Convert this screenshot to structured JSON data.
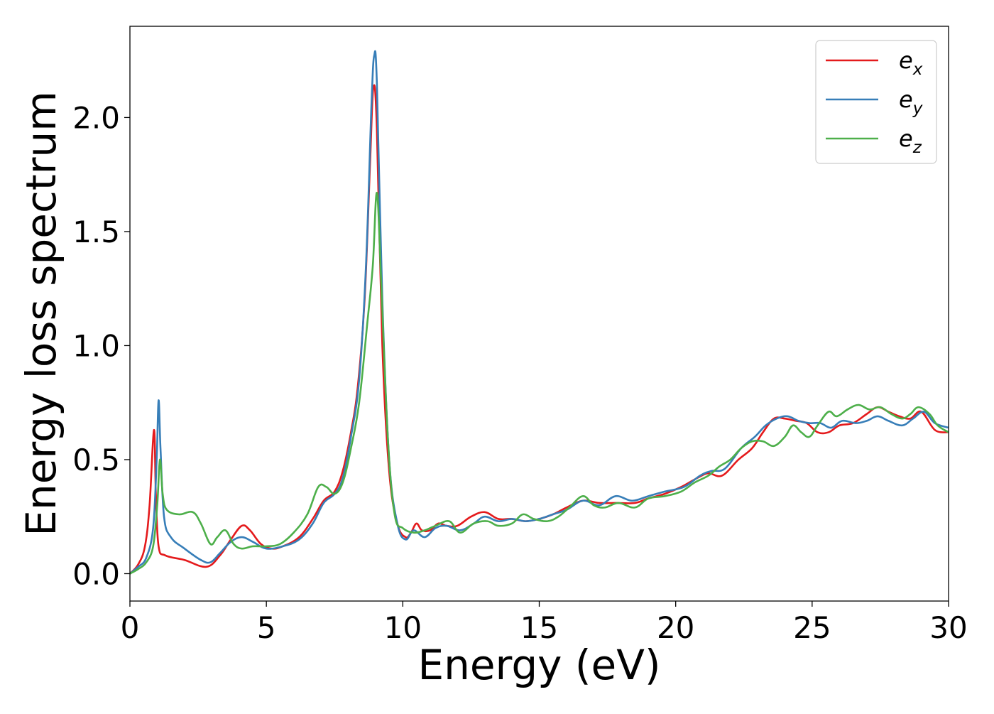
{
  "chart_data": {
    "type": "line",
    "title": "",
    "xlabel": "Energy (eV)",
    "ylabel": "Energy loss spectrum",
    "xlim": [
      0,
      30
    ],
    "ylim": [
      -0.12,
      2.4
    ],
    "xticks": [
      0,
      5,
      10,
      15,
      20,
      25,
      30
    ],
    "xtick_labels": [
      "0",
      "5",
      "10",
      "15",
      "20",
      "25",
      "30"
    ],
    "yticks": [
      0.0,
      0.5,
      1.0,
      1.5,
      2.0
    ],
    "ytick_labels": [
      "0.0",
      "0.5",
      "1.0",
      "1.5",
      "2.0"
    ],
    "grid": false,
    "legend_position": "top-right",
    "series": [
      {
        "name": "e_x",
        "label_base": "e",
        "label_sub": "x",
        "color": "#e41a1c",
        "points": [
          [
            0,
            0
          ],
          [
            0.3,
            0.04
          ],
          [
            0.55,
            0.12
          ],
          [
            0.72,
            0.3
          ],
          [
            0.88,
            0.63
          ],
          [
            0.95,
            0.35
          ],
          [
            1.05,
            0.12
          ],
          [
            1.3,
            0.08
          ],
          [
            2.0,
            0.06
          ],
          [
            2.8,
            0.03
          ],
          [
            3.3,
            0.08
          ],
          [
            3.7,
            0.15
          ],
          [
            4.1,
            0.21
          ],
          [
            4.4,
            0.19
          ],
          [
            4.8,
            0.13
          ],
          [
            5.2,
            0.11
          ],
          [
            5.6,
            0.12
          ],
          [
            6.2,
            0.16
          ],
          [
            6.7,
            0.24
          ],
          [
            7.1,
            0.32
          ],
          [
            7.5,
            0.36
          ],
          [
            7.8,
            0.45
          ],
          [
            8.1,
            0.62
          ],
          [
            8.35,
            0.82
          ],
          [
            8.6,
            1.2
          ],
          [
            8.8,
            1.8
          ],
          [
            8.92,
            2.13
          ],
          [
            9.05,
            1.95
          ],
          [
            9.25,
            1.0
          ],
          [
            9.5,
            0.45
          ],
          [
            9.8,
            0.22
          ],
          [
            10.1,
            0.16
          ],
          [
            10.3,
            0.18
          ],
          [
            10.5,
            0.22
          ],
          [
            10.7,
            0.19
          ],
          [
            11.0,
            0.19
          ],
          [
            11.3,
            0.22
          ],
          [
            11.6,
            0.21
          ],
          [
            12.0,
            0.21
          ],
          [
            12.5,
            0.25
          ],
          [
            13.0,
            0.27
          ],
          [
            13.5,
            0.24
          ],
          [
            14.0,
            0.24
          ],
          [
            14.5,
            0.23
          ],
          [
            15.0,
            0.24
          ],
          [
            15.5,
            0.26
          ],
          [
            16.0,
            0.29
          ],
          [
            16.6,
            0.32
          ],
          [
            17.2,
            0.31
          ],
          [
            17.8,
            0.31
          ],
          [
            18.5,
            0.31
          ],
          [
            19.0,
            0.33
          ],
          [
            19.6,
            0.35
          ],
          [
            20.2,
            0.38
          ],
          [
            20.8,
            0.42
          ],
          [
            21.2,
            0.44
          ],
          [
            21.7,
            0.43
          ],
          [
            22.3,
            0.5
          ],
          [
            22.8,
            0.55
          ],
          [
            23.2,
            0.62
          ],
          [
            23.6,
            0.68
          ],
          [
            24.0,
            0.68
          ],
          [
            24.4,
            0.67
          ],
          [
            24.8,
            0.66
          ],
          [
            25.2,
            0.62
          ],
          [
            25.6,
            0.62
          ],
          [
            26.0,
            0.65
          ],
          [
            26.5,
            0.66
          ],
          [
            27.0,
            0.7
          ],
          [
            27.4,
            0.73
          ],
          [
            27.8,
            0.71
          ],
          [
            28.2,
            0.69
          ],
          [
            28.6,
            0.68
          ],
          [
            29.0,
            0.71
          ],
          [
            29.5,
            0.63
          ],
          [
            30.0,
            0.62
          ]
        ]
      },
      {
        "name": "e_y",
        "label_base": "e",
        "label_sub": "y",
        "color": "#377eb8",
        "points": [
          [
            0,
            0
          ],
          [
            0.3,
            0.03
          ],
          [
            0.6,
            0.07
          ],
          [
            0.85,
            0.2
          ],
          [
            0.98,
            0.5
          ],
          [
            1.05,
            0.76
          ],
          [
            1.12,
            0.55
          ],
          [
            1.25,
            0.25
          ],
          [
            1.5,
            0.16
          ],
          [
            2.0,
            0.11
          ],
          [
            2.6,
            0.06
          ],
          [
            2.95,
            0.05
          ],
          [
            3.3,
            0.09
          ],
          [
            3.7,
            0.14
          ],
          [
            4.1,
            0.16
          ],
          [
            4.5,
            0.14
          ],
          [
            5.0,
            0.11
          ],
          [
            5.6,
            0.12
          ],
          [
            6.2,
            0.15
          ],
          [
            6.7,
            0.22
          ],
          [
            7.1,
            0.31
          ],
          [
            7.5,
            0.35
          ],
          [
            7.8,
            0.42
          ],
          [
            8.1,
            0.6
          ],
          [
            8.4,
            0.85
          ],
          [
            8.65,
            1.35
          ],
          [
            8.85,
            2.05
          ],
          [
            8.95,
            2.27
          ],
          [
            9.05,
            2.15
          ],
          [
            9.25,
            1.2
          ],
          [
            9.5,
            0.5
          ],
          [
            9.8,
            0.22
          ],
          [
            10.1,
            0.15
          ],
          [
            10.4,
            0.19
          ],
          [
            10.8,
            0.16
          ],
          [
            11.2,
            0.2
          ],
          [
            11.6,
            0.21
          ],
          [
            12.1,
            0.19
          ],
          [
            12.6,
            0.22
          ],
          [
            13.0,
            0.25
          ],
          [
            13.5,
            0.23
          ],
          [
            14.0,
            0.24
          ],
          [
            14.5,
            0.23
          ],
          [
            15.0,
            0.24
          ],
          [
            15.5,
            0.26
          ],
          [
            16.0,
            0.28
          ],
          [
            16.6,
            0.32
          ],
          [
            17.2,
            0.3
          ],
          [
            17.8,
            0.34
          ],
          [
            18.4,
            0.32
          ],
          [
            19.0,
            0.34
          ],
          [
            19.6,
            0.36
          ],
          [
            20.3,
            0.38
          ],
          [
            20.9,
            0.43
          ],
          [
            21.3,
            0.45
          ],
          [
            21.8,
            0.46
          ],
          [
            22.4,
            0.55
          ],
          [
            22.9,
            0.6
          ],
          [
            23.3,
            0.65
          ],
          [
            23.7,
            0.68
          ],
          [
            24.1,
            0.69
          ],
          [
            24.5,
            0.67
          ],
          [
            24.9,
            0.66
          ],
          [
            25.3,
            0.66
          ],
          [
            25.7,
            0.64
          ],
          [
            26.1,
            0.67
          ],
          [
            26.6,
            0.66
          ],
          [
            27.0,
            0.67
          ],
          [
            27.4,
            0.69
          ],
          [
            27.8,
            0.67
          ],
          [
            28.3,
            0.65
          ],
          [
            28.7,
            0.68
          ],
          [
            29.1,
            0.71
          ],
          [
            29.5,
            0.66
          ],
          [
            30.0,
            0.64
          ]
        ]
      },
      {
        "name": "e_z",
        "label_base": "e",
        "label_sub": "z",
        "color": "#4daf4a",
        "points": [
          [
            0,
            0
          ],
          [
            0.3,
            0.02
          ],
          [
            0.6,
            0.05
          ],
          [
            0.85,
            0.12
          ],
          [
            1.0,
            0.3
          ],
          [
            1.1,
            0.5
          ],
          [
            1.2,
            0.35
          ],
          [
            1.35,
            0.28
          ],
          [
            1.8,
            0.26
          ],
          [
            2.3,
            0.27
          ],
          [
            2.6,
            0.22
          ],
          [
            2.95,
            0.13
          ],
          [
            3.2,
            0.16
          ],
          [
            3.5,
            0.19
          ],
          [
            3.8,
            0.13
          ],
          [
            4.1,
            0.11
          ],
          [
            4.5,
            0.12
          ],
          [
            5.0,
            0.12
          ],
          [
            5.5,
            0.13
          ],
          [
            6.0,
            0.18
          ],
          [
            6.5,
            0.26
          ],
          [
            6.9,
            0.38
          ],
          [
            7.2,
            0.38
          ],
          [
            7.5,
            0.35
          ],
          [
            7.8,
            0.4
          ],
          [
            8.1,
            0.55
          ],
          [
            8.4,
            0.75
          ],
          [
            8.7,
            1.1
          ],
          [
            8.9,
            1.35
          ],
          [
            9.05,
            1.67
          ],
          [
            9.2,
            1.3
          ],
          [
            9.45,
            0.6
          ],
          [
            9.7,
            0.26
          ],
          [
            10.0,
            0.2
          ],
          [
            10.4,
            0.18
          ],
          [
            10.8,
            0.19
          ],
          [
            11.2,
            0.21
          ],
          [
            11.7,
            0.23
          ],
          [
            12.1,
            0.18
          ],
          [
            12.6,
            0.22
          ],
          [
            13.1,
            0.23
          ],
          [
            13.5,
            0.21
          ],
          [
            14.0,
            0.22
          ],
          [
            14.4,
            0.26
          ],
          [
            14.8,
            0.24
          ],
          [
            15.3,
            0.23
          ],
          [
            15.7,
            0.25
          ],
          [
            16.1,
            0.29
          ],
          [
            16.6,
            0.34
          ],
          [
            17.0,
            0.3
          ],
          [
            17.4,
            0.29
          ],
          [
            17.9,
            0.31
          ],
          [
            18.5,
            0.29
          ],
          [
            19.0,
            0.33
          ],
          [
            19.6,
            0.34
          ],
          [
            20.2,
            0.36
          ],
          [
            20.7,
            0.4
          ],
          [
            21.2,
            0.43
          ],
          [
            21.6,
            0.47
          ],
          [
            22.0,
            0.5
          ],
          [
            22.4,
            0.55
          ],
          [
            22.8,
            0.58
          ],
          [
            23.2,
            0.58
          ],
          [
            23.6,
            0.56
          ],
          [
            24.0,
            0.6
          ],
          [
            24.3,
            0.65
          ],
          [
            24.6,
            0.62
          ],
          [
            24.9,
            0.6
          ],
          [
            25.2,
            0.65
          ],
          [
            25.6,
            0.71
          ],
          [
            25.9,
            0.69
          ],
          [
            26.3,
            0.72
          ],
          [
            26.7,
            0.74
          ],
          [
            27.1,
            0.72
          ],
          [
            27.5,
            0.73
          ],
          [
            27.9,
            0.7
          ],
          [
            28.3,
            0.68
          ],
          [
            28.6,
            0.7
          ],
          [
            28.9,
            0.73
          ],
          [
            29.3,
            0.7
          ],
          [
            29.6,
            0.65
          ],
          [
            30.0,
            0.62
          ]
        ]
      }
    ]
  }
}
